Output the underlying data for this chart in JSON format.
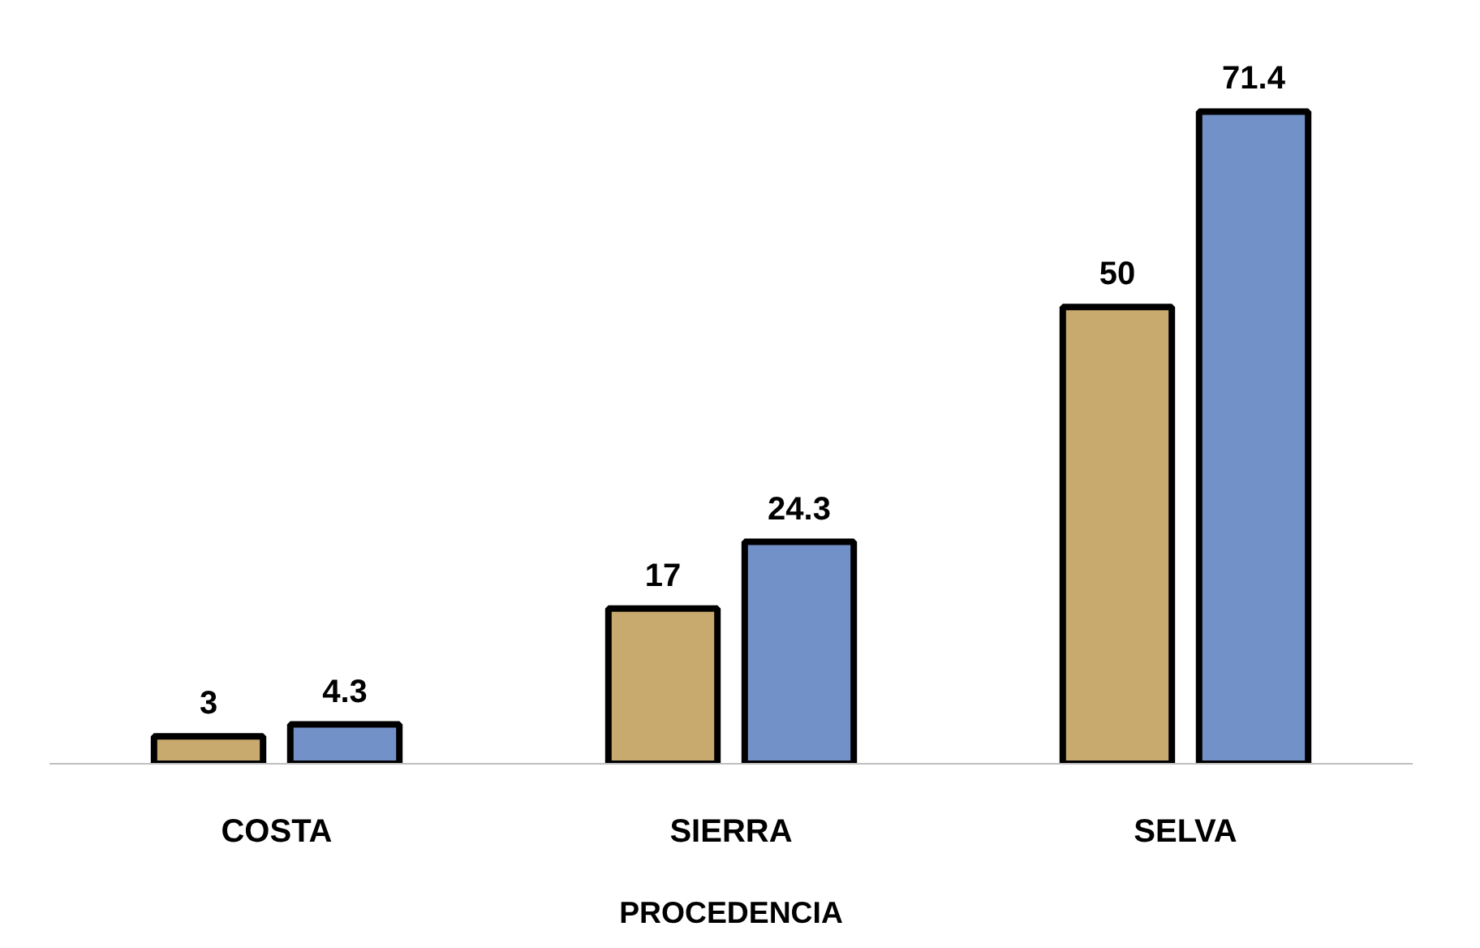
{
  "chart_data": {
    "type": "bar",
    "categories": [
      "COSTA",
      "SIERRA",
      "SELVA"
    ],
    "xlabel": "PROCEDENCIA",
    "series": [
      {
        "color": "#c8a96e",
        "values": [
          3,
          17,
          50
        ]
      },
      {
        "color": "#7391c9",
        "values": [
          4.3,
          24.3,
          71.4
        ]
      }
    ],
    "data_labels": true,
    "grid": false
  }
}
